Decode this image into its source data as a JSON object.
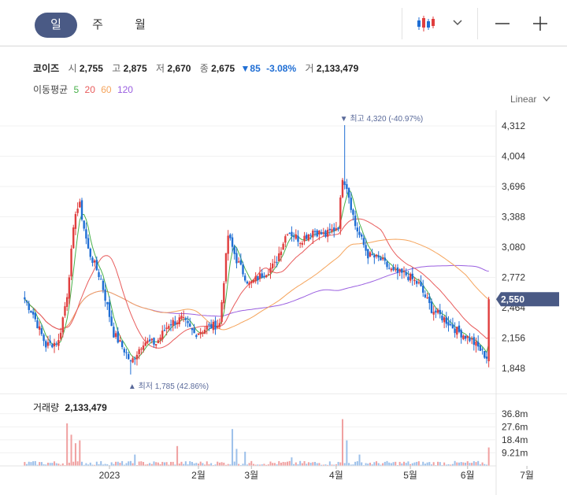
{
  "toolbar": {
    "periods": [
      "일",
      "주",
      "월"
    ],
    "active_period": "일"
  },
  "quote": {
    "name": "코이즈",
    "open_label": "시",
    "open": "2,755",
    "high_label": "고",
    "high": "2,875",
    "low_label": "저",
    "low": "2,670",
    "close_label": "종",
    "close": "2,675",
    "change": "85",
    "change_pct": "-3.08%",
    "volume_label": "거",
    "volume": "2,133,479"
  },
  "ma_legend": {
    "label": "이동평균",
    "periods": [
      "5",
      "20",
      "60",
      "120"
    ]
  },
  "scale_mode": "Linear",
  "volume_panel": {
    "label": "거래량",
    "value": "2,133,479",
    "ticks": [
      "36.8m",
      "27.6m",
      "18.4m",
      "9.21m"
    ]
  },
  "chart_data": {
    "type": "candlestick",
    "x_labels": [
      "2023",
      "2월",
      "3월",
      "4월",
      "5월",
      "6월",
      "7월"
    ],
    "y_ticks": [
      4312,
      4004,
      3696,
      3388,
      3080,
      2772,
      2464,
      2156,
      1848
    ],
    "ylim": [
      1848,
      4312
    ],
    "current_price_label": "2,550",
    "max_annotation": "최고 4,320 (-40.97%)",
    "min_annotation": "최저 1,785 (42.86%)",
    "colors": {
      "up": "#e03e3e",
      "down": "#1f6ed4",
      "ma5": "#48b04a",
      "ma20": "#e85c5c",
      "ma60": "#f5a45c",
      "ma120": "#9a5fe0",
      "price_badge": "#4a5a85"
    },
    "ohlc_approx": [
      {
        "t": 0,
        "o": 2550,
        "h": 2580,
        "l": 2380,
        "c": 2420
      },
      {
        "t": 10,
        "o": 2050,
        "h": 2150,
        "l": 2000,
        "c": 2080
      },
      {
        "t": 20,
        "o": 2100,
        "h": 2700,
        "l": 2000,
        "c": 2600
      },
      {
        "t": 25,
        "o": 3100,
        "h": 3650,
        "l": 2900,
        "c": 3500
      },
      {
        "t": 35,
        "o": 2800,
        "h": 3100,
        "l": 2700,
        "c": 2750
      },
      {
        "t": 50,
        "o": 2100,
        "h": 2200,
        "l": 1785,
        "c": 1950
      },
      {
        "t": 60,
        "o": 2100,
        "h": 2200,
        "l": 2050,
        "c": 2150
      },
      {
        "t": 70,
        "o": 2300,
        "h": 2650,
        "l": 2200,
        "c": 2350
      },
      {
        "t": 85,
        "o": 2200,
        "h": 2300,
        "l": 2150,
        "c": 2250
      },
      {
        "t": 95,
        "o": 2400,
        "h": 3350,
        "l": 2350,
        "c": 3200
      },
      {
        "t": 110,
        "o": 2700,
        "h": 2900,
        "l": 2600,
        "c": 2750
      },
      {
        "t": 125,
        "o": 3100,
        "h": 3400,
        "l": 3000,
        "c": 3250
      },
      {
        "t": 140,
        "o": 3300,
        "h": 3400,
        "l": 3100,
        "c": 3150
      },
      {
        "t": 150,
        "o": 3400,
        "h": 4320,
        "l": 3300,
        "c": 3700
      },
      {
        "t": 160,
        "o": 3100,
        "h": 3200,
        "l": 2900,
        "c": 2950
      },
      {
        "t": 175,
        "o": 2800,
        "h": 2900,
        "l": 2700,
        "c": 2750
      },
      {
        "t": 190,
        "o": 2500,
        "h": 2600,
        "l": 2350,
        "c": 2400
      },
      {
        "t": 205,
        "o": 2200,
        "h": 2250,
        "l": 2100,
        "c": 2150
      },
      {
        "t": 215,
        "o": 1950,
        "h": 2550,
        "l": 1900,
        "c": 2550
      }
    ]
  }
}
